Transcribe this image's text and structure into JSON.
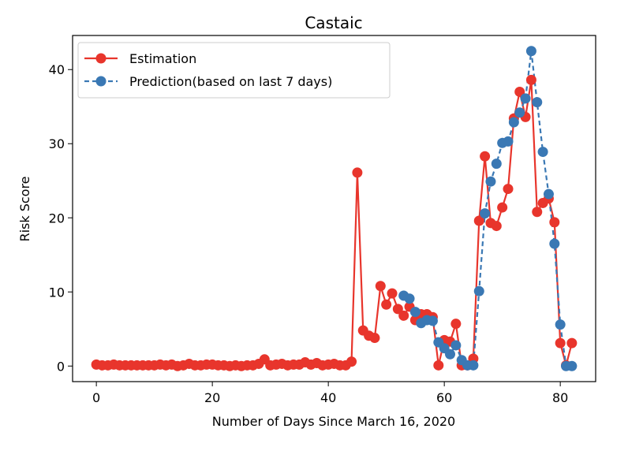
{
  "chart_data": {
    "type": "line",
    "title": "Castaic",
    "xlabel": "Number of Days Since March 16, 2020",
    "ylabel": "Risk Score",
    "xlim": [
      -4.1,
      86.1
    ],
    "ylim": [
      -2.1,
      44.6
    ],
    "x_ticks": [
      0,
      20,
      40,
      60,
      80
    ],
    "y_ticks": [
      0,
      10,
      20,
      30,
      40
    ],
    "grid": false,
    "legend_position": "top-left",
    "series": [
      {
        "name": "Estimation",
        "color": "#e8352c",
        "style": "solid",
        "x": [
          0,
          1,
          2,
          3,
          4,
          5,
          6,
          7,
          8,
          9,
          10,
          11,
          12,
          13,
          14,
          15,
          16,
          17,
          18,
          19,
          20,
          21,
          22,
          23,
          24,
          25,
          26,
          27,
          28,
          29,
          30,
          31,
          32,
          33,
          34,
          35,
          36,
          37,
          38,
          39,
          40,
          41,
          42,
          43,
          44,
          45,
          46,
          47,
          48,
          49,
          50,
          51,
          52,
          53,
          54,
          55,
          56,
          57,
          58,
          59,
          60,
          61,
          62,
          63,
          64,
          65,
          66,
          67,
          68,
          69,
          70,
          71,
          72,
          73,
          74,
          75,
          76,
          77,
          78,
          79,
          80,
          81,
          82
        ],
        "values": [
          0.2,
          0.1,
          0.1,
          0.2,
          0.1,
          0.1,
          0.1,
          0.1,
          0.1,
          0.1,
          0.1,
          0.2,
          0.1,
          0.2,
          0.0,
          0.1,
          0.3,
          0.1,
          0.1,
          0.2,
          0.2,
          0.1,
          0.1,
          0.0,
          0.1,
          0.0,
          0.1,
          0.1,
          0.3,
          0.9,
          0.1,
          0.2,
          0.3,
          0.1,
          0.2,
          0.2,
          0.5,
          0.2,
          0.4,
          0.1,
          0.2,
          0.3,
          0.1,
          0.1,
          0.6,
          26.1,
          4.8,
          4.1,
          3.8,
          10.8,
          8.3,
          9.8,
          7.7,
          6.8,
          8.0,
          6.2,
          7.0,
          7.0,
          6.6,
          0.1,
          3.5,
          3.3,
          5.7,
          0.1,
          0.1,
          1.0,
          19.6,
          28.3,
          19.3,
          18.9,
          21.4,
          23.9,
          33.4,
          37.0,
          33.6,
          38.6,
          20.8,
          22.0,
          22.6,
          19.4,
          3.1,
          0.1,
          3.1
        ]
      },
      {
        "name": "Prediction(based on last 7 days)",
        "color": "#3a78b4",
        "style": "dashed",
        "x": [
          53,
          54,
          55,
          56,
          57,
          58,
          59,
          60,
          61,
          62,
          63,
          64,
          65,
          66,
          67,
          68,
          69,
          70,
          71,
          72,
          73,
          74,
          75,
          76,
          77,
          78,
          79,
          80,
          81,
          82
        ],
        "values": [
          9.5,
          9.1,
          7.3,
          5.8,
          6.2,
          6.1,
          3.2,
          2.4,
          1.6,
          2.8,
          0.8,
          0.1,
          0.1,
          10.1,
          20.6,
          24.9,
          27.3,
          30.1,
          30.3,
          32.9,
          34.2,
          36.1,
          42.5,
          35.6,
          28.9,
          23.2,
          16.5,
          5.6,
          0.0,
          0.0
        ]
      }
    ]
  }
}
